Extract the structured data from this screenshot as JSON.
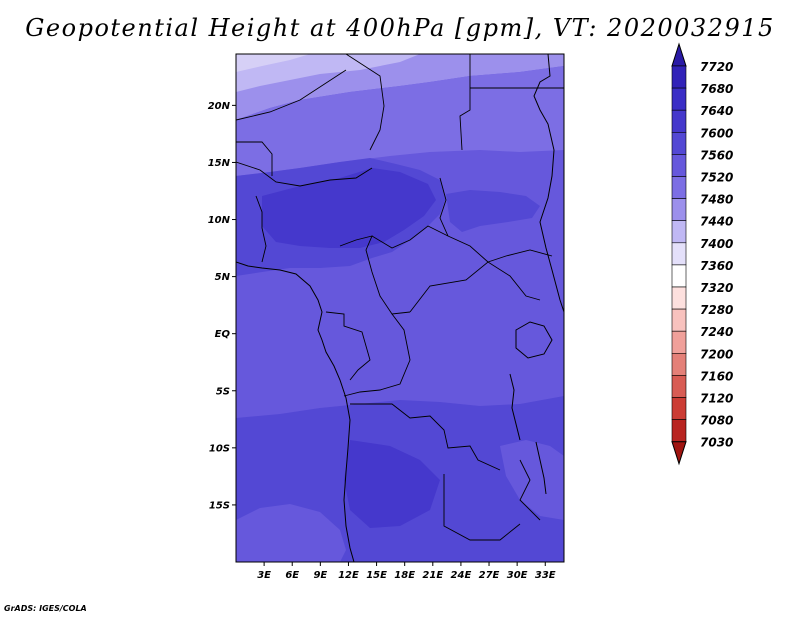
{
  "chart_data": {
    "type": "heatmap",
    "title": "Geopotential Height at 400hPa [gpm], VT: 2020032915",
    "x_ticks": [
      "3E",
      "6E",
      "9E",
      "12E",
      "15E",
      "18E",
      "21E",
      "24E",
      "27E",
      "30E",
      "33E"
    ],
    "y_ticks": [
      "20N",
      "15N",
      "10N",
      "5N",
      "EQ",
      "5S",
      "10S",
      "15S"
    ],
    "xlim": [
      0,
      35
    ],
    "ylim": [
      -20,
      24.5
    ],
    "colorbar": {
      "levels": [
        "7720",
        "7680",
        "7640",
        "7600",
        "7560",
        "7520",
        "7480",
        "7440",
        "7400",
        "7360",
        "7320",
        "7280",
        "7240",
        "7200",
        "7160",
        "7120",
        "7080",
        "7030"
      ],
      "colors": [
        "#2a1aa6",
        "#3122b8",
        "#3a2ec6",
        "#4538cc",
        "#5348d4",
        "#6658dc",
        "#7c6ee4",
        "#9c90ec",
        "#c0b8f4",
        "#e4e0fa",
        "#ffffff",
        "#fde0de",
        "#f8c2be",
        "#f0a09a",
        "#e48078",
        "#d85c54",
        "#cc3c34",
        "#b82420",
        "#a01410"
      ]
    },
    "fields": [
      {
        "band": "7480-7520",
        "color": "#9c90ec"
      },
      {
        "band": "7520-7560",
        "color": "#7c6ee4"
      },
      {
        "band": "7560-7600",
        "color": "#6658dc"
      },
      {
        "band": "7600-7640",
        "color": "#5348d4"
      },
      {
        "band": "7640-7680",
        "color": "#4538cc"
      }
    ]
  },
  "credit": "GrADS: IGES/COLA"
}
